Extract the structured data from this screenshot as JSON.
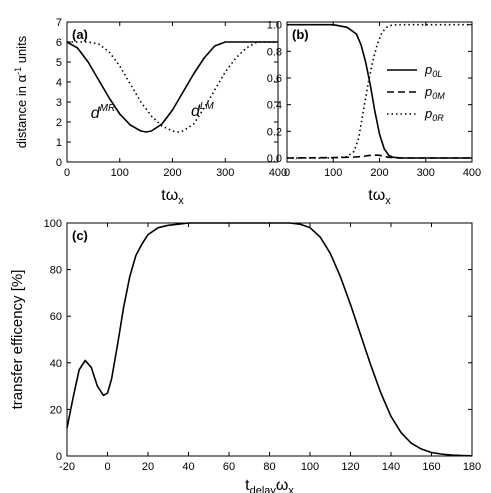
{
  "chart_data": [
    {
      "panel_label": "(a)",
      "type": "line",
      "xlabel": "tω",
      "xlabel_sub": "x",
      "ylabel": "distance in α",
      "ylabel_sup": "-1",
      "ylabel_suffix": " units",
      "xlim": [
        0,
        400
      ],
      "ylim": [
        0,
        7
      ],
      "xticks": [
        "0",
        "100",
        "200",
        "300",
        "400"
      ],
      "yticks": [
        "0",
        "1",
        "2",
        "3",
        "4",
        "5",
        "6",
        "7"
      ],
      "grid": false,
      "series": [
        {
          "name": "d^MR",
          "style": "solid",
          "x": [
            0,
            20,
            40,
            60,
            80,
            100,
            120,
            140,
            150,
            160,
            180,
            200,
            220,
            240,
            260,
            280,
            300,
            320,
            340,
            360,
            380,
            400
          ],
          "y": [
            6.0,
            5.7,
            5.0,
            4.1,
            3.2,
            2.4,
            1.85,
            1.55,
            1.5,
            1.55,
            1.9,
            2.6,
            3.5,
            4.4,
            5.2,
            5.8,
            6.0,
            6.0,
            6.0,
            6.0,
            6.0,
            6.0
          ]
        },
        {
          "name": "d^LM",
          "style": "dotted",
          "x": [
            0,
            20,
            40,
            60,
            80,
            100,
            120,
            140,
            160,
            180,
            200,
            210,
            220,
            240,
            260,
            280,
            300,
            320,
            340,
            360,
            380,
            400
          ],
          "y": [
            6.0,
            6.0,
            6.0,
            5.9,
            5.5,
            4.8,
            3.9,
            3.0,
            2.3,
            1.8,
            1.55,
            1.5,
            1.55,
            1.9,
            2.7,
            3.6,
            4.5,
            5.2,
            5.7,
            6.0,
            6.0,
            6.0
          ]
        }
      ],
      "annotations": [
        {
          "base": "d",
          "sup": "MR",
          "x": 45,
          "y": 2.2
        },
        {
          "base": "d",
          "sup": "LM",
          "x": 235,
          "y": 2.3
        }
      ]
    },
    {
      "panel_label": "(b)",
      "type": "line",
      "xlabel": "tω",
      "xlabel_sub": "x",
      "ylabel": "",
      "xlim": [
        0,
        400
      ],
      "ylim": [
        -0.03,
        1.02
      ],
      "xticks": [
        "0",
        "100",
        "200",
        "300",
        "400"
      ],
      "yticks": [
        "0.0",
        "0.2",
        "0.4",
        "0.6",
        "0.8",
        "1.0"
      ],
      "grid": false,
      "legend_position": "right",
      "series": [
        {
          "name": "p",
          "name_sub": "0L",
          "style": "solid",
          "x": [
            0,
            100,
            130,
            150,
            160,
            170,
            180,
            190,
            200,
            210,
            220,
            230,
            250,
            300,
            400
          ],
          "y": [
            1.0,
            1.0,
            0.98,
            0.93,
            0.85,
            0.72,
            0.55,
            0.35,
            0.18,
            0.07,
            0.02,
            0.005,
            0.0,
            0.0,
            0.0
          ]
        },
        {
          "name": "p",
          "name_sub": "0M",
          "style": "dashed",
          "x": [
            0,
            100,
            140,
            160,
            180,
            190,
            200,
            210,
            220,
            240,
            300,
            400
          ],
          "y": [
            0.0,
            0.003,
            0.006,
            0.01,
            0.02,
            0.022,
            0.02,
            0.012,
            0.005,
            0.0,
            0.0,
            0.0
          ]
        },
        {
          "name": "p",
          "name_sub": "0R",
          "style": "dotted",
          "x": [
            0,
            100,
            130,
            145,
            155,
            165,
            175,
            185,
            195,
            205,
            215,
            225,
            240,
            300,
            400
          ],
          "y": [
            0.0,
            0.0,
            0.01,
            0.05,
            0.15,
            0.35,
            0.55,
            0.72,
            0.85,
            0.94,
            0.98,
            0.995,
            1.0,
            1.0,
            1.0
          ]
        }
      ]
    },
    {
      "panel_label": "(c)",
      "type": "line",
      "xlabel": "t",
      "xlabel_sub": "delay",
      "xlabel_mid": "ω",
      "xlabel_sub2": "x",
      "ylabel": "transfer efficency [%]",
      "xlim": [
        -20,
        180
      ],
      "ylim": [
        0,
        100
      ],
      "xticks": [
        "-20",
        "0",
        "20",
        "40",
        "60",
        "80",
        "100",
        "120",
        "140",
        "160",
        "180"
      ],
      "yticks": [
        "0",
        "20",
        "40",
        "60",
        "80",
        "100"
      ],
      "grid": false,
      "series": [
        {
          "name": "",
          "style": "solid",
          "x": [
            -20,
            -17,
            -14,
            -11,
            -8,
            -5,
            -2,
            0,
            2,
            5,
            8,
            11,
            14,
            17,
            20,
            25,
            30,
            35,
            40,
            50,
            60,
            70,
            80,
            90,
            95,
            100,
            105,
            110,
            115,
            120,
            125,
            130,
            135,
            140,
            145,
            150,
            155,
            160,
            165,
            170,
            175,
            180
          ],
          "y": [
            12,
            25,
            37,
            41,
            38,
            30,
            26,
            27,
            33,
            48,
            64,
            77,
            86,
            91,
            95,
            98,
            99,
            99.5,
            100,
            100,
            100,
            100,
            100,
            100,
            99.5,
            98,
            94,
            87,
            77,
            65,
            52,
            39,
            27,
            17,
            10,
            5.5,
            3,
            1.5,
            0.8,
            0.4,
            0.2,
            0.1
          ]
        }
      ]
    }
  ]
}
